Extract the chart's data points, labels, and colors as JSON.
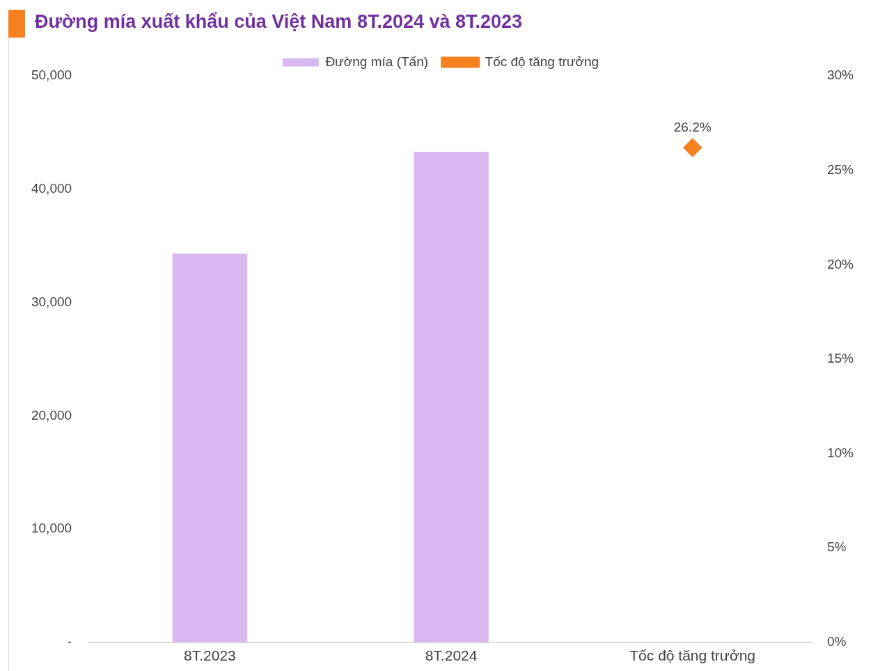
{
  "chart_data": {
    "type": "bar",
    "title": "Đường mía xuất khẩu của Việt Nam 8T.2024 và 8T.2023",
    "categories": [
      "8T.2023",
      "8T.2024",
      "Tốc độ tăng trưởng"
    ],
    "series": [
      {
        "name": "Đường mía (Tấn)",
        "color": "#d9b8ef",
        "values": [
          34300,
          43300,
          null
        ]
      },
      {
        "name": "Tốc độ tăng trưởng",
        "type": "line",
        "axis": "y2",
        "color": "#f5821f",
        "values": [
          null,
          null,
          26.2
        ],
        "marker": "diamond",
        "line_style": "solid",
        "value_labels": [
          null,
          null,
          "26.2%"
        ]
      }
    ],
    "ylim": [
      0,
      50000
    ],
    "yticks": [
      {
        "value": 0,
        "label": "-"
      },
      {
        "value": 10000,
        "label": "10,000"
      },
      {
        "value": 20000,
        "label": "20,000"
      },
      {
        "value": 30000,
        "label": "30,000"
      },
      {
        "value": 40000,
        "label": "40,000"
      },
      {
        "value": 50000,
        "label": "50,000"
      }
    ],
    "y2lim": [
      0,
      30
    ],
    "y2ticks": [
      {
        "value": 0,
        "label": "0%"
      },
      {
        "value": 5,
        "label": "5%"
      },
      {
        "value": 10,
        "label": "10%"
      },
      {
        "value": 15,
        "label": "15%"
      },
      {
        "value": 20,
        "label": "20%"
      },
      {
        "value": 25,
        "label": "25%"
      },
      {
        "value": 30,
        "label": "30%"
      }
    ],
    "grid": false,
    "legend": "top"
  }
}
